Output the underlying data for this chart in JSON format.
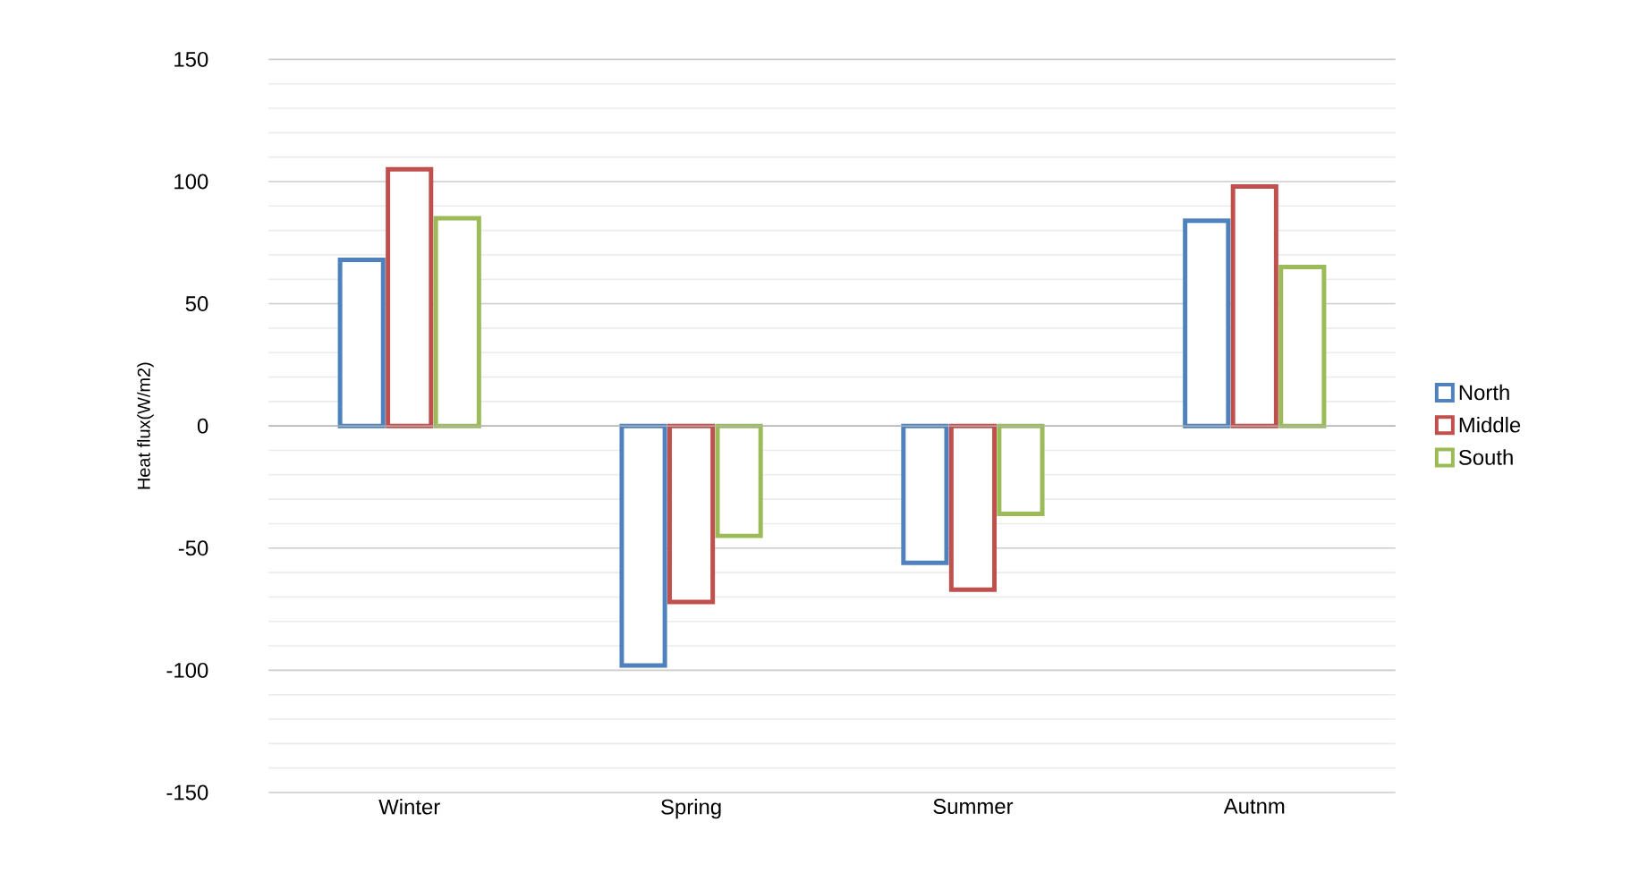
{
  "chart_data": {
    "type": "bar",
    "ylabel": "Heat flux(W/m2)",
    "categories": [
      "Winter",
      "Spring",
      "Summer",
      "Autnm"
    ],
    "series": [
      {
        "name": "North",
        "color": "#4f81bd",
        "values": [
          68,
          -98,
          -56,
          84
        ]
      },
      {
        "name": "Middle",
        "color": "#c0504d",
        "values": [
          105,
          -72,
          -67,
          98
        ]
      },
      {
        "name": "South",
        "color": "#9bbb59",
        "values": [
          85,
          -45,
          -36,
          65
        ]
      }
    ],
    "ylim": [
      -150,
      150
    ],
    "yticks": [
      -150,
      -100,
      -50,
      0,
      50,
      100,
      150
    ],
    "grid": "y",
    "legend": "right"
  }
}
